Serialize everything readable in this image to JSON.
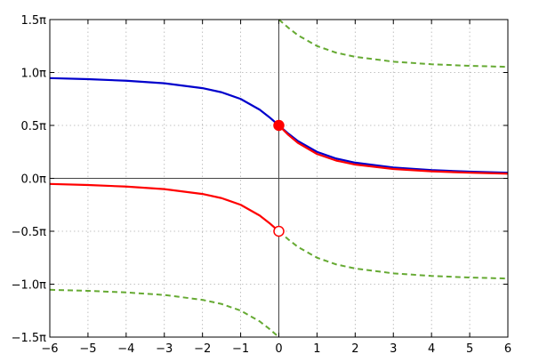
{
  "chart_data": {
    "type": "line",
    "title": "",
    "xlabel": "",
    "ylabel": "",
    "xlim": [
      -6,
      6
    ],
    "ylim_pi": [
      -1.5,
      1.5
    ],
    "grid": true,
    "x_ticks": [
      -6,
      -5,
      -4,
      -3,
      -2,
      -1,
      0,
      1,
      2,
      3,
      4,
      5,
      6
    ],
    "x_tick_labels": [
      "−6",
      "−5",
      "−4",
      "−3",
      "−2",
      "−1",
      "0",
      "1",
      "2",
      "3",
      "4",
      "5",
      "6"
    ],
    "y_ticks_pi": [
      -1.5,
      -1.0,
      -0.5,
      0.0,
      0.5,
      1.0,
      1.5
    ],
    "y_tick_labels": [
      "−1.5π",
      "−1.0π",
      "−0.5π",
      "0.0π",
      "0.5π",
      "1.0π",
      "1.5π"
    ],
    "series": [
      {
        "style": "solid",
        "color": "#0000cc",
        "x": [
          -6,
          -5,
          -4,
          -3,
          -2,
          -1.5,
          -1,
          -0.5,
          -0.25,
          0,
          0.25,
          0.5,
          1,
          1.5,
          2,
          3,
          4,
          5,
          6
        ],
        "y_pi": [
          0.947,
          0.937,
          0.922,
          0.898,
          0.852,
          0.813,
          0.75,
          0.648,
          0.578,
          0.5,
          0.422,
          0.352,
          0.25,
          0.187,
          0.148,
          0.102,
          0.078,
          0.063,
          0.053
        ]
      },
      {
        "style": "solid",
        "color": "#ff0000",
        "x": [
          -6,
          -5,
          -4,
          -3,
          -2,
          -1.5,
          -1,
          -0.5,
          -0.25,
          0
        ],
        "y_pi": [
          -0.053,
          -0.063,
          -0.078,
          -0.102,
          -0.148,
          -0.187,
          -0.25,
          -0.352,
          -0.422,
          -0.5
        ]
      },
      {
        "style": "solid",
        "color": "#ff0000",
        "x": [
          0,
          0.25,
          0.5,
          1,
          1.5,
          2,
          3,
          4,
          5,
          6
        ],
        "y_pi": [
          0.5,
          0.41,
          0.335,
          0.23,
          0.168,
          0.13,
          0.088,
          0.066,
          0.053,
          0.044
        ]
      },
      {
        "style": "dashed",
        "color": "#66aa33",
        "x": [
          0,
          0.25,
          0.5,
          1,
          1.5,
          2,
          3,
          4,
          5,
          6
        ],
        "y_pi": [
          1.5,
          1.422,
          1.352,
          1.25,
          1.187,
          1.148,
          1.102,
          1.078,
          1.063,
          1.053
        ]
      },
      {
        "style": "dashed",
        "color": "#66aa33",
        "x": [
          0,
          0.25,
          0.5,
          1,
          1.5,
          2,
          3,
          4,
          5,
          6
        ],
        "y_pi": [
          -0.5,
          -0.578,
          -0.648,
          -0.75,
          -0.813,
          -0.852,
          -0.898,
          -0.922,
          -0.937,
          -0.947
        ]
      },
      {
        "style": "dashed",
        "color": "#66aa33",
        "x": [
          -6,
          -5,
          -4,
          -3,
          -2,
          -1.5,
          -1,
          -0.5,
          -0.25,
          0
        ],
        "y_pi": [
          -1.053,
          -1.063,
          -1.078,
          -1.102,
          -1.148,
          -1.187,
          -1.25,
          -1.352,
          -1.422,
          -1.5
        ]
      }
    ],
    "markers": [
      {
        "x": 0,
        "y_pi": 0.5,
        "filled": true,
        "color": "#ff0000"
      },
      {
        "x": 0,
        "y_pi": -0.5,
        "filled": false,
        "color": "#ff0000"
      }
    ]
  }
}
